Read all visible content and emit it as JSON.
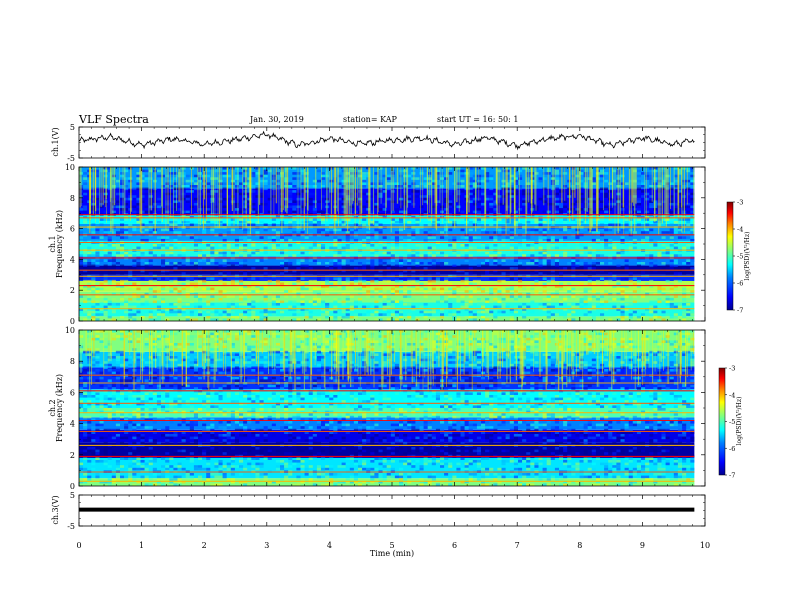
{
  "header": {
    "title": "VLF Spectra",
    "date": "Jan. 30, 2019",
    "station": "station= KAP",
    "start": "start UT =  16: 50: 1"
  },
  "chart_data": [
    {
      "type": "line",
      "panel": "ch1-waveform",
      "ylabel": "ch.1(V)",
      "ylim": [
        -5,
        5
      ],
      "yticks": [
        5,
        -5
      ],
      "xlim": [
        0,
        10
      ],
      "data_end_min": 9.83,
      "description_values": {
        "mean": 0.3,
        "amplitude": 2.6
      },
      "x": [
        0,
        0.5,
        1,
        1.5,
        2,
        2.5,
        3,
        3.5,
        4,
        4.5,
        5,
        5.5,
        6,
        6.5,
        7,
        7.5,
        8,
        8.5,
        9,
        9.5,
        9.83
      ],
      "y": [
        0.5,
        1.8,
        -0.8,
        1.2,
        -0.6,
        0.9,
        2.6,
        -0.9,
        1.3,
        -0.5,
        0.8,
        1.4,
        -0.7,
        1.6,
        -1.0,
        1.2,
        2.2,
        -1.0,
        1.5,
        -0.6,
        0.6
      ]
    },
    {
      "type": "heatmap",
      "panel": "ch1-spectrogram",
      "ylabel_line1": "ch.1",
      "ylabel_line2": "Frequency (kHz)",
      "ylim": [
        0,
        10
      ],
      "yticks": [
        0,
        2,
        4,
        6,
        8,
        10
      ],
      "xlim": [
        0,
        10
      ],
      "data_end_min": 9.83,
      "colorbar": {
        "label": "log(PSD)(V²/Hz)",
        "range": [
          -7,
          -3
        ],
        "ticks": [
          -3,
          -4,
          -5,
          -6,
          -7
        ]
      },
      "bands_khz": [
        {
          "lo": 0.0,
          "hi": 0.3,
          "level": -5.0
        },
        {
          "lo": 0.3,
          "hi": 1.2,
          "level": -5.4
        },
        {
          "lo": 1.2,
          "hi": 1.9,
          "level": -5.0
        },
        {
          "lo": 1.9,
          "hi": 2.6,
          "level": -4.8
        },
        {
          "lo": 2.6,
          "hi": 3.0,
          "level": -6.3
        },
        {
          "lo": 3.0,
          "hi": 3.6,
          "level": -6.9
        },
        {
          "lo": 3.6,
          "hi": 4.2,
          "level": -6.0
        },
        {
          "lo": 4.2,
          "hi": 5.2,
          "level": -5.4
        },
        {
          "lo": 5.2,
          "hi": 6.3,
          "level": -5.9
        },
        {
          "lo": 6.3,
          "hi": 6.9,
          "level": -5.5
        },
        {
          "lo": 6.9,
          "hi": 8.6,
          "level": -6.5
        },
        {
          "lo": 8.6,
          "hi": 10.0,
          "level": -5.9
        }
      ],
      "lines_khz": [
        0.8,
        1.7,
        2.3,
        2.9,
        3.3,
        4.1,
        4.6,
        5.1,
        5.6,
        6.1,
        6.7,
        6.9
      ]
    },
    {
      "type": "heatmap",
      "panel": "ch2-spectrogram",
      "ylabel_line1": "ch.2",
      "ylabel_line2": "Frequency (kHz)",
      "ylim": [
        0,
        10
      ],
      "yticks": [
        0,
        2,
        4,
        6,
        8,
        10
      ],
      "xlim": [
        0,
        10
      ],
      "data_end_min": 9.83,
      "colorbar": {
        "label": "log(PSD)(V²/Hz)",
        "range": [
          -7,
          -3
        ],
        "ticks": [
          -3,
          -4,
          -5,
          -6,
          -7
        ]
      },
      "bands_khz": [
        {
          "lo": 0.0,
          "hi": 0.5,
          "level": -5.0
        },
        {
          "lo": 0.5,
          "hi": 1.8,
          "level": -5.6
        },
        {
          "lo": 1.8,
          "hi": 2.8,
          "level": -6.9
        },
        {
          "lo": 2.8,
          "hi": 3.6,
          "level": -6.6
        },
        {
          "lo": 3.6,
          "hi": 4.4,
          "level": -6.0
        },
        {
          "lo": 4.4,
          "hi": 5.0,
          "level": -5.2
        },
        {
          "lo": 5.0,
          "hi": 6.2,
          "level": -5.5
        },
        {
          "lo": 6.2,
          "hi": 7.6,
          "level": -6.3
        },
        {
          "lo": 7.6,
          "hi": 8.6,
          "level": -5.7
        },
        {
          "lo": 8.6,
          "hi": 10.0,
          "level": -5.0
        }
      ],
      "lines_khz": [
        0.3,
        0.9,
        1.9,
        2.6,
        3.5,
        4.2,
        4.7,
        5.3,
        6.1,
        6.6,
        7.1
      ]
    },
    {
      "type": "line",
      "panel": "ch3-waveform",
      "ylabel": "ch.3(V)",
      "ylim": [
        -5,
        5
      ],
      "yticks": [
        5,
        -5
      ],
      "xlim": [
        0,
        10
      ],
      "data_end_min": 9.83,
      "x": [
        0,
        9.83
      ],
      "y": [
        0.3,
        0.3
      ]
    }
  ],
  "xaxis": {
    "label": "Time (min)",
    "ticks": [
      0,
      1,
      2,
      3,
      4,
      5,
      6,
      7,
      8,
      9,
      10
    ]
  },
  "colors": {
    "colormap": [
      "#00008f",
      "#0000ff",
      "#0080ff",
      "#00ffff",
      "#80ff80",
      "#ffff00",
      "#ff8000",
      "#ff0000",
      "#800000"
    ]
  }
}
